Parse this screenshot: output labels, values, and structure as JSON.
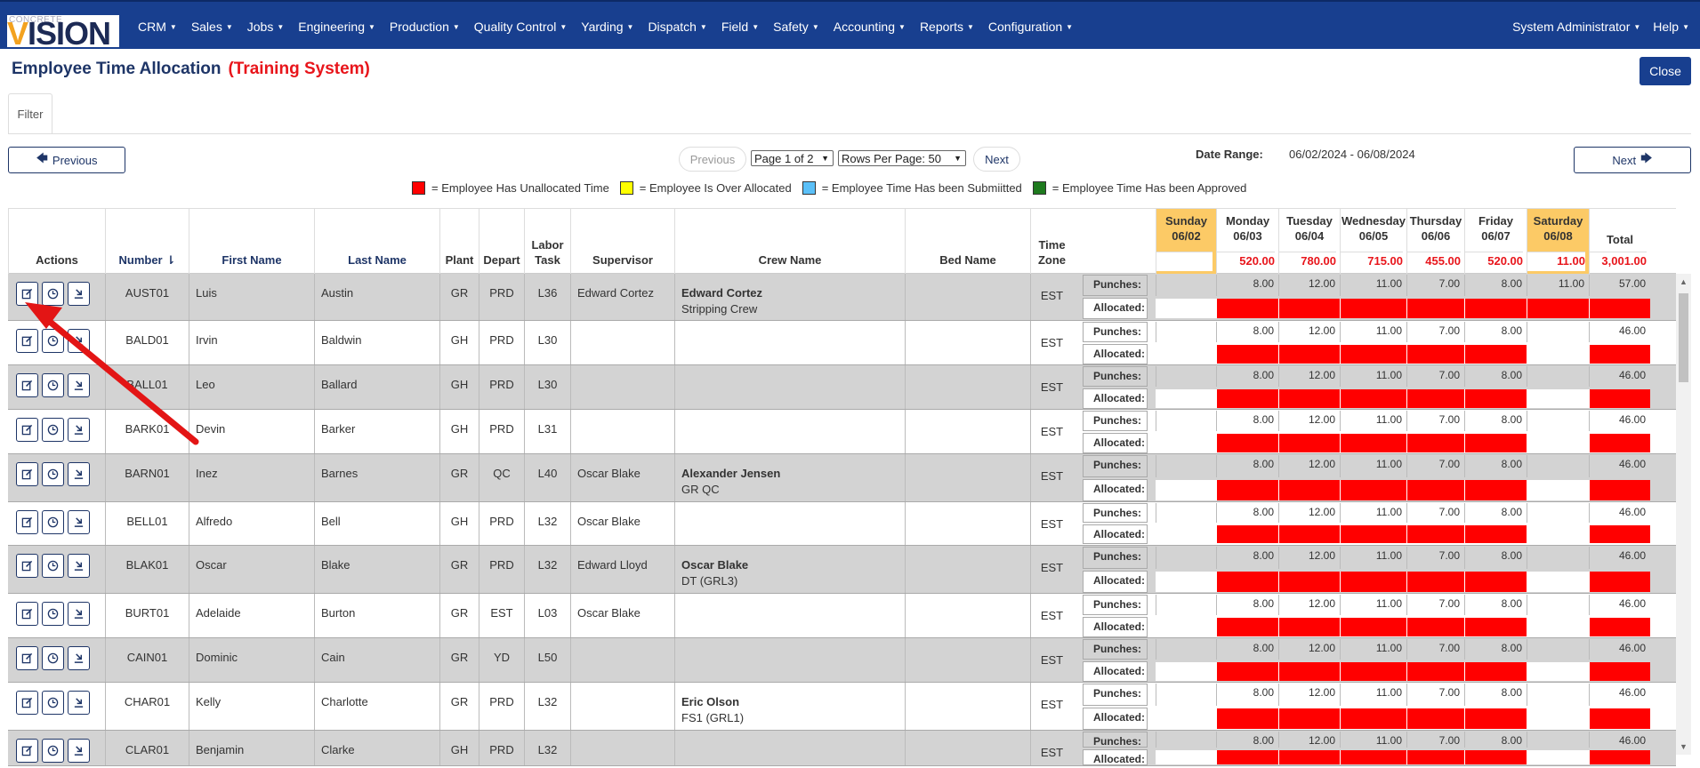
{
  "logo": {
    "small": "CONCRETE",
    "main_v": "V",
    "main_rest": "ISION"
  },
  "nav": {
    "items": [
      "CRM",
      "Sales",
      "Jobs",
      "Engineering",
      "Production",
      "Quality Control",
      "Yarding",
      "Dispatch",
      "Field",
      "Safety",
      "Accounting",
      "Reports",
      "Configuration"
    ],
    "user": "System Administrator",
    "help": "Help"
  },
  "page": {
    "title": "Employee Time Allocation",
    "training": "(Training System)",
    "close": "Close",
    "filter_tab": "Filter"
  },
  "paging": {
    "prev_button": "Previous",
    "next_button": "Next",
    "pager_prev": "Previous",
    "pager_next": "Next",
    "page_select": "Page 1 of 2",
    "rows_select": "Rows Per Page: 50",
    "date_label": "Date Range:",
    "date_value": "06/02/2024 - 06/08/2024"
  },
  "legend": [
    {
      "color": "#ff0000",
      "text": "= Employee Has Unallocated Time"
    },
    {
      "color": "#ffff00",
      "text": "= Employee Is Over Allocated"
    },
    {
      "color": "#5bc0f8",
      "text": "= Employee Time Has been Submiitted"
    },
    {
      "color": "#1e7a1e",
      "text": "= Employee Time Has been Approved"
    }
  ],
  "columns": {
    "actions": "Actions",
    "number": "Number",
    "first": "First Name",
    "last": "Last Name",
    "plant": "Plant",
    "depart": "Depart",
    "labor_task": "Labor Task",
    "supervisor": "Supervisor",
    "crew": "Crew Name",
    "bed": "Bed Name",
    "tz": "Time Zone",
    "total": "Total"
  },
  "days": [
    {
      "name": "Sunday",
      "date": "06/02",
      "total": "",
      "weekend": true
    },
    {
      "name": "Monday",
      "date": "06/03",
      "total": "520.00",
      "weekend": false
    },
    {
      "name": "Tuesday",
      "date": "06/04",
      "total": "780.00",
      "weekend": false
    },
    {
      "name": "Wednesday",
      "date": "06/05",
      "total": "715.00",
      "weekend": false
    },
    {
      "name": "Thursday",
      "date": "06/06",
      "total": "455.00",
      "weekend": false
    },
    {
      "name": "Friday",
      "date": "06/07",
      "total": "520.00",
      "weekend": false
    },
    {
      "name": "Saturday",
      "date": "06/08",
      "total": "11.00",
      "weekend": true
    }
  ],
  "grand_total": "3,001.00",
  "labels": {
    "punches": "Punches:",
    "allocated": "Allocated:"
  },
  "employees": [
    {
      "number": "AUST01",
      "first": "Luis",
      "last": "Austin",
      "plant": "GR",
      "depart": "PRD",
      "task": "L36",
      "supervisor": "Edward Cortez",
      "crew": "Edward Cortez",
      "crew_sub": "Stripping Crew",
      "bed": "",
      "tz": "EST",
      "punches": [
        "",
        "8.00",
        "12.00",
        "11.00",
        "7.00",
        "8.00",
        "11.00",
        "57.00"
      ],
      "alloc_red": [
        false,
        true,
        true,
        true,
        true,
        true,
        true,
        true
      ]
    },
    {
      "number": "BALD01",
      "first": "Irvin",
      "last": "Baldwin",
      "plant": "GH",
      "depart": "PRD",
      "task": "L30",
      "supervisor": "",
      "crew": "",
      "crew_sub": "",
      "bed": "",
      "tz": "EST",
      "punches": [
        "",
        "8.00",
        "12.00",
        "11.00",
        "7.00",
        "8.00",
        "",
        "46.00"
      ],
      "alloc_red": [
        false,
        true,
        true,
        true,
        true,
        true,
        false,
        true
      ]
    },
    {
      "number": "BALL01",
      "first": "Leo",
      "last": "Ballard",
      "plant": "GH",
      "depart": "PRD",
      "task": "L30",
      "supervisor": "",
      "crew": "",
      "crew_sub": "",
      "bed": "",
      "tz": "EST",
      "punches": [
        "",
        "8.00",
        "12.00",
        "11.00",
        "7.00",
        "8.00",
        "",
        "46.00"
      ],
      "alloc_red": [
        false,
        true,
        true,
        true,
        true,
        true,
        false,
        true
      ]
    },
    {
      "number": "BARK01",
      "first": "Devin",
      "last": "Barker",
      "plant": "GH",
      "depart": "PRD",
      "task": "L31",
      "supervisor": "",
      "crew": "",
      "crew_sub": "",
      "bed": "",
      "tz": "EST",
      "punches": [
        "",
        "8.00",
        "12.00",
        "11.00",
        "7.00",
        "8.00",
        "",
        "46.00"
      ],
      "alloc_red": [
        false,
        true,
        true,
        true,
        true,
        true,
        false,
        true
      ]
    },
    {
      "number": "BARN01",
      "first": "Inez",
      "last": "Barnes",
      "plant": "GR",
      "depart": "QC",
      "task": "L40",
      "supervisor": "Oscar Blake",
      "crew": "Alexander Jensen",
      "crew_sub": "GR QC",
      "bed": "",
      "tz": "EST",
      "punches": [
        "",
        "8.00",
        "12.00",
        "11.00",
        "7.00",
        "8.00",
        "",
        "46.00"
      ],
      "alloc_red": [
        false,
        true,
        true,
        true,
        true,
        true,
        false,
        true
      ]
    },
    {
      "number": "BELL01",
      "first": "Alfredo",
      "last": "Bell",
      "plant": "GH",
      "depart": "PRD",
      "task": "L32",
      "supervisor": "Oscar Blake",
      "crew": "",
      "crew_sub": "",
      "bed": "",
      "tz": "EST",
      "punches": [
        "",
        "8.00",
        "12.00",
        "11.00",
        "7.00",
        "8.00",
        "",
        "46.00"
      ],
      "alloc_red": [
        false,
        true,
        true,
        true,
        true,
        true,
        false,
        true
      ]
    },
    {
      "number": "BLAK01",
      "first": "Oscar",
      "last": "Blake",
      "plant": "GR",
      "depart": "PRD",
      "task": "L32",
      "supervisor": "Edward Lloyd",
      "crew": "Oscar Blake",
      "crew_sub": "DT (GRL3)",
      "bed": "",
      "tz": "EST",
      "punches": [
        "",
        "8.00",
        "12.00",
        "11.00",
        "7.00",
        "8.00",
        "",
        "46.00"
      ],
      "alloc_red": [
        false,
        true,
        true,
        true,
        true,
        true,
        false,
        true
      ]
    },
    {
      "number": "BURT01",
      "first": "Adelaide",
      "last": "Burton",
      "plant": "GR",
      "depart": "EST",
      "task": "L03",
      "supervisor": "Oscar Blake",
      "crew": "",
      "crew_sub": "",
      "bed": "",
      "tz": "EST",
      "punches": [
        "",
        "8.00",
        "12.00",
        "11.00",
        "7.00",
        "8.00",
        "",
        "46.00"
      ],
      "alloc_red": [
        false,
        true,
        true,
        true,
        true,
        true,
        false,
        true
      ]
    },
    {
      "number": "CAIN01",
      "first": "Dominic",
      "last": "Cain",
      "plant": "GR",
      "depart": "YD",
      "task": "L50",
      "supervisor": "",
      "crew": "",
      "crew_sub": "",
      "bed": "",
      "tz": "EST",
      "punches": [
        "",
        "8.00",
        "12.00",
        "11.00",
        "7.00",
        "8.00",
        "",
        "46.00"
      ],
      "alloc_red": [
        false,
        true,
        true,
        true,
        true,
        true,
        false,
        true
      ]
    },
    {
      "number": "CHAR01",
      "first": "Kelly",
      "last": "Charlotte",
      "plant": "GR",
      "depart": "PRD",
      "task": "L32",
      "supervisor": "",
      "crew": "Eric Olson",
      "crew_sub": "FS1 (GRL1)",
      "bed": "",
      "tz": "EST",
      "punches": [
        "",
        "8.00",
        "12.00",
        "11.00",
        "7.00",
        "8.00",
        "",
        "46.00"
      ],
      "alloc_red": [
        false,
        true,
        true,
        true,
        true,
        true,
        false,
        true
      ]
    },
    {
      "number": "CLAR01",
      "first": "Benjamin",
      "last": "Clarke",
      "plant": "GH",
      "depart": "PRD",
      "task": "L32",
      "supervisor": "",
      "crew": "",
      "crew_sub": "",
      "bed": "",
      "tz": "EST",
      "punches": [
        "",
        "8.00",
        "12.00",
        "11.00",
        "7.00",
        "8.00",
        "",
        "46.00"
      ],
      "alloc_red": [
        false,
        true,
        true,
        true,
        true,
        true,
        false,
        true
      ]
    }
  ]
}
